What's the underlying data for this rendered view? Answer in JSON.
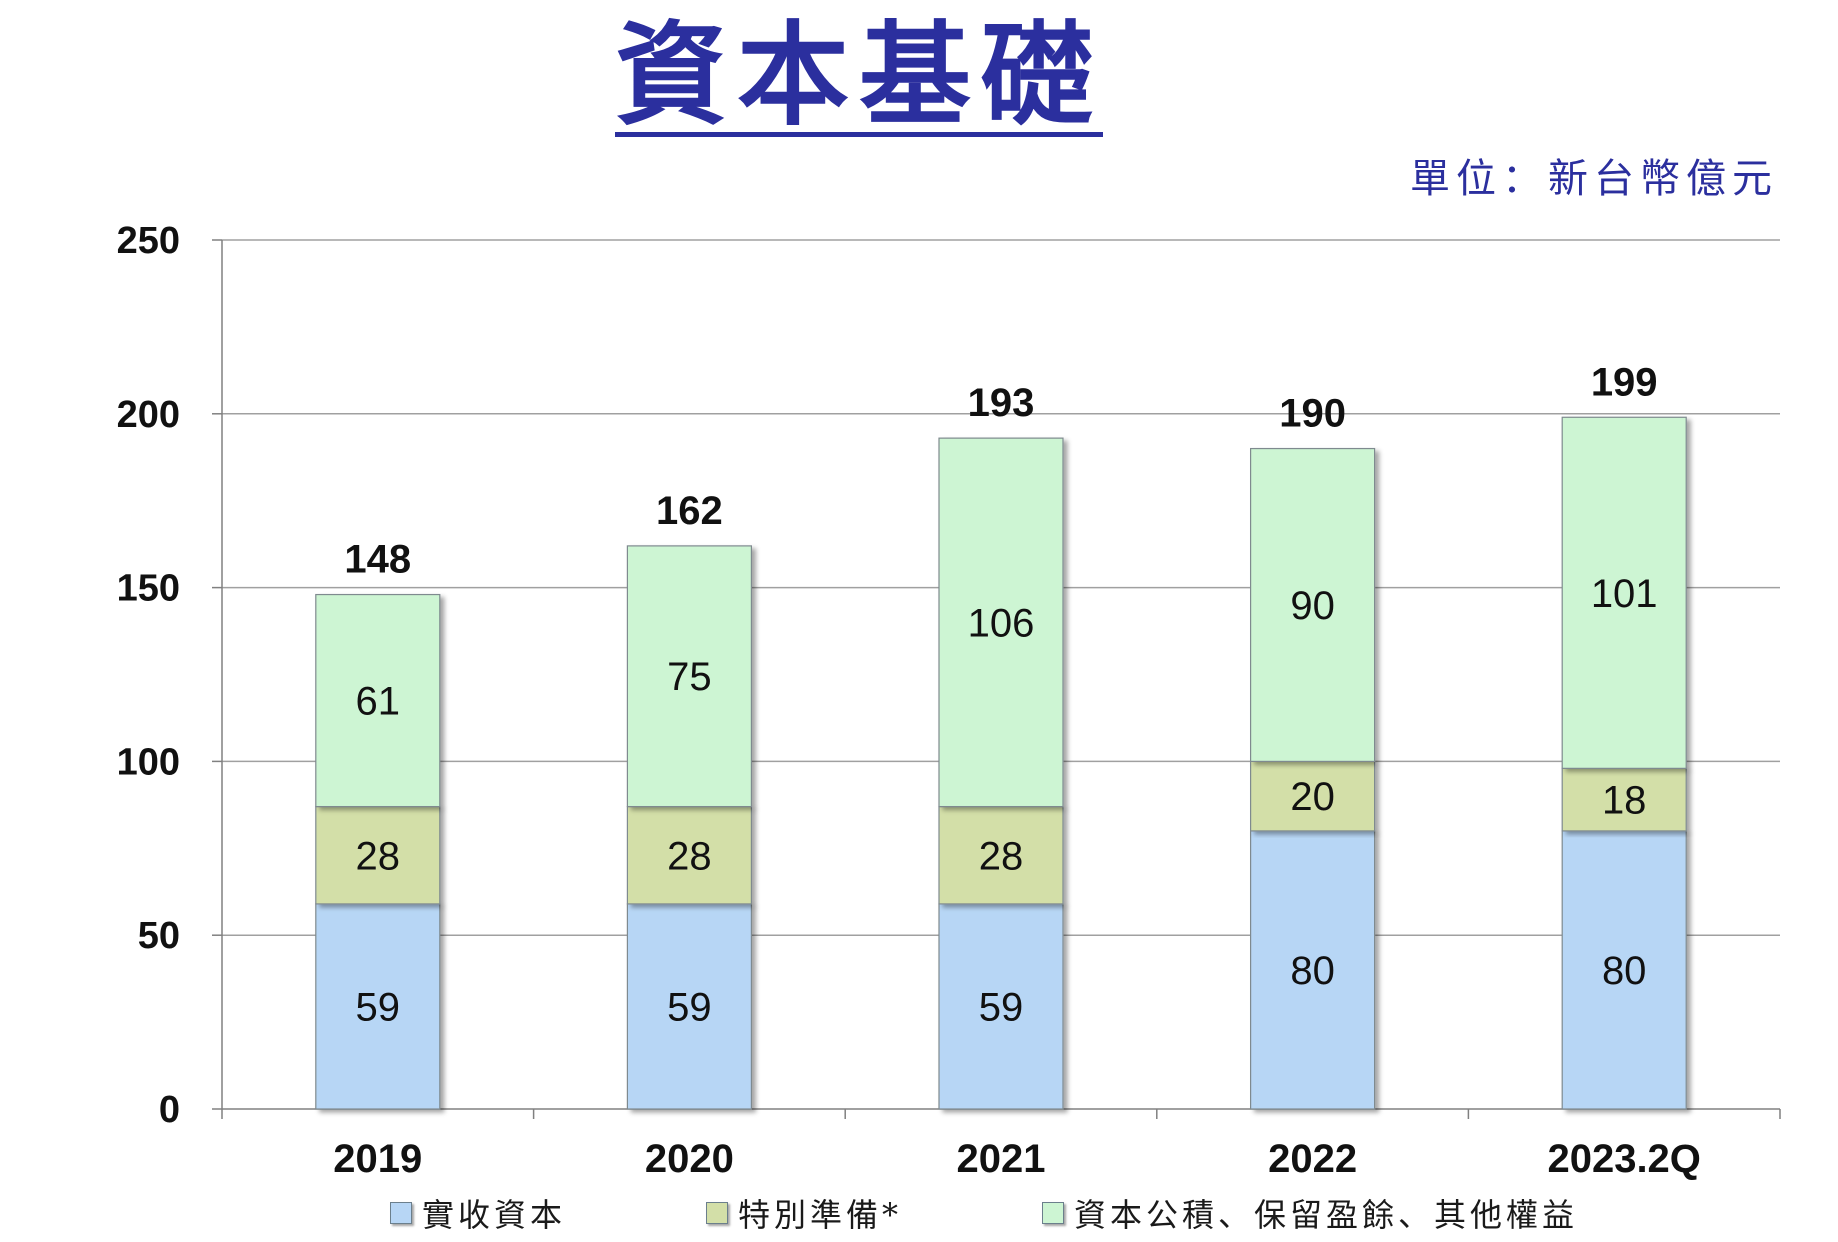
{
  "title": "資本基礎",
  "unit_note": "單位：新台幣億元",
  "colors": {
    "title": "#2b2f9e",
    "paid_in_capital": "#b7d6f5",
    "special_reserve": "#d3dfa8",
    "capital_surplus_retained": "#cdf5d3"
  },
  "chart_data": {
    "type": "bar",
    "stacked": true,
    "categories": [
      "2019",
      "2020",
      "2021",
      "2022",
      "2023.2Q"
    ],
    "series": [
      {
        "name": "實收資本",
        "values": [
          59,
          59,
          59,
          80,
          80
        ]
      },
      {
        "name": "特別準備*",
        "values": [
          28,
          28,
          28,
          20,
          18
        ]
      },
      {
        "name": "資本公積、保留盈餘、其他權益",
        "values": [
          61,
          75,
          106,
          90,
          101
        ]
      }
    ],
    "totals": [
      148,
      162,
      193,
      190,
      199
    ],
    "ylim": [
      0,
      250
    ],
    "yticks": [
      "0",
      "50",
      "100",
      "150",
      "200",
      "250"
    ],
    "grid": true,
    "legend_position": "bottom"
  }
}
